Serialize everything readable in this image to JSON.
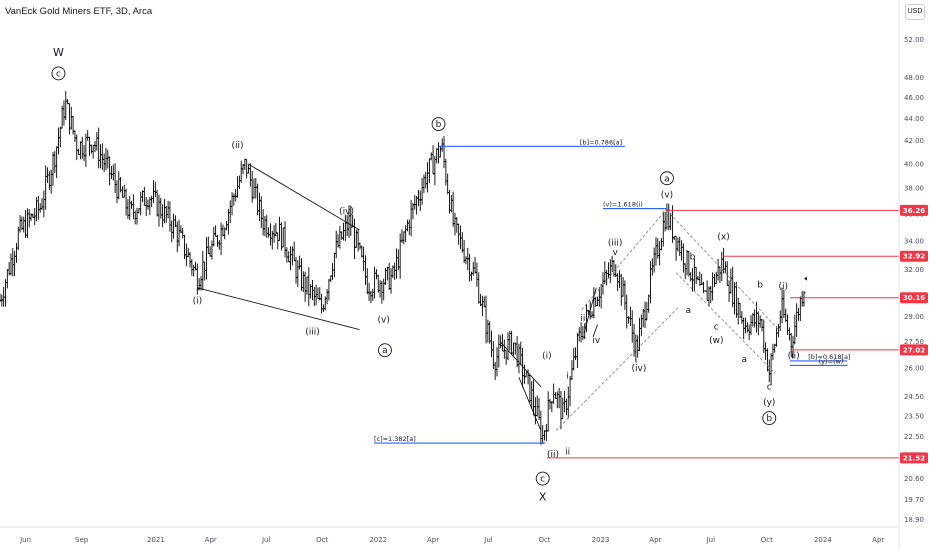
{
  "header": {
    "title": "VanEck Gold Miners ETF, 3D, Arca",
    "currency": "USD"
  },
  "colors": {
    "bars": "#000000",
    "fib_line": "#2962ff",
    "level_line": "#f23645",
    "badge": "#f23645",
    "axis_text": "#4a4e59",
    "channel": "#787b86"
  },
  "chart_data": {
    "type": "ohlc",
    "x_axis": {
      "tick_labels": [
        "Jun",
        "Sep",
        "2021",
        "Apr",
        "Jul",
        "Oct",
        "2022",
        "Apr",
        "Jul",
        "Oct",
        "2023",
        "Apr",
        "Jul",
        "Oct",
        "2024",
        "Apr"
      ],
      "tick_dates": [
        "2020-06-01",
        "2020-09-01",
        "2021-01-01",
        "2021-04-01",
        "2021-07-01",
        "2021-10-01",
        "2022-01-01",
        "2022-04-01",
        "2022-07-01",
        "2022-10-01",
        "2023-01-01",
        "2023-04-01",
        "2023-07-01",
        "2023-10-01",
        "2024-01-01",
        "2024-04-01"
      ],
      "range": [
        "2020-04-20",
        "2024-05-05"
      ]
    },
    "y_axis": {
      "scale": "log",
      "range": [
        18.6,
        56.5
      ],
      "tick_values": [
        52.0,
        48.0,
        46.0,
        44.0,
        42.0,
        40.0,
        38.0,
        36.0,
        34.0,
        32.0,
        29.0,
        27.5,
        26.0,
        24.5,
        23.5,
        22.5,
        21.5,
        20.6,
        19.7,
        18.9
      ],
      "tick_labels": [
        "52.00",
        "48.00",
        "46.00",
        "44.00",
        "42.00",
        "40.00",
        "38.00",
        "36.00",
        "34.00",
        "32.00",
        "29.00",
        "27.50",
        "26.00",
        "24.50",
        "23.50",
        "22.50",
        "21.50",
        "20.60",
        "19.70",
        "18.90"
      ]
    },
    "price_path": [
      {
        "date": "2020-04-20",
        "price": 30.0
      },
      {
        "date": "2020-05-20",
        "price": 34.5
      },
      {
        "date": "2020-06-25",
        "price": 36.5
      },
      {
        "date": "2020-07-20",
        "price": 41.0
      },
      {
        "date": "2020-08-05",
        "price": 45.5
      },
      {
        "date": "2020-08-25",
        "price": 41.5
      },
      {
        "date": "2020-09-20",
        "price": 42.0
      },
      {
        "date": "2020-10-20",
        "price": 39.0
      },
      {
        "date": "2020-11-20",
        "price": 36.0
      },
      {
        "date": "2020-12-20",
        "price": 37.5
      },
      {
        "date": "2021-02-01",
        "price": 35.0
      },
      {
        "date": "2021-03-10",
        "price": 31.5
      },
      {
        "date": "2021-04-20",
        "price": 35.0
      },
      {
        "date": "2021-05-28",
        "price": 40.0
      },
      {
        "date": "2021-06-25",
        "price": 35.5
      },
      {
        "date": "2021-07-25",
        "price": 34.5
      },
      {
        "date": "2021-08-25",
        "price": 31.5
      },
      {
        "date": "2021-09-30",
        "price": 29.5
      },
      {
        "date": "2021-10-20",
        "price": 33.0
      },
      {
        "date": "2021-11-15",
        "price": 35.5
      },
      {
        "date": "2021-12-15",
        "price": 31.0
      },
      {
        "date": "2022-01-25",
        "price": 31.5
      },
      {
        "date": "2022-02-20",
        "price": 35.5
      },
      {
        "date": "2022-03-20",
        "price": 39.0
      },
      {
        "date": "2022-04-15",
        "price": 41.5
      },
      {
        "date": "2022-05-05",
        "price": 35.0
      },
      {
        "date": "2022-06-10",
        "price": 31.5
      },
      {
        "date": "2022-07-10",
        "price": 26.5
      },
      {
        "date": "2022-08-10",
        "price": 27.5
      },
      {
        "date": "2022-09-10",
        "price": 24.5
      },
      {
        "date": "2022-09-28",
        "price": 22.5
      },
      {
        "date": "2022-10-15",
        "price": 25.0
      },
      {
        "date": "2022-11-01",
        "price": 23.5
      },
      {
        "date": "2022-11-25",
        "price": 27.5
      },
      {
        "date": "2022-12-20",
        "price": 30.0
      },
      {
        "date": "2023-01-25",
        "price": 32.5
      },
      {
        "date": "2023-03-01",
        "price": 27.0
      },
      {
        "date": "2023-03-25",
        "price": 31.5
      },
      {
        "date": "2023-04-18",
        "price": 36.0
      },
      {
        "date": "2023-05-12",
        "price": 33.5
      },
      {
        "date": "2023-06-20",
        "price": 30.0
      },
      {
        "date": "2023-07-20",
        "price": 32.5
      },
      {
        "date": "2023-08-25",
        "price": 28.5
      },
      {
        "date": "2023-09-20",
        "price": 28.8
      },
      {
        "date": "2023-10-05",
        "price": 25.8
      },
      {
        "date": "2023-10-25",
        "price": 29.5
      },
      {
        "date": "2023-11-10",
        "price": 27.5
      },
      {
        "date": "2023-12-01",
        "price": 31.0
      }
    ],
    "price_levels": [
      {
        "value": 36.26,
        "label": "36.26",
        "from": "2023-04-18"
      },
      {
        "value": 32.92,
        "label": "32.92",
        "from": "2023-07-22"
      },
      {
        "value": 30.16,
        "label": "30.16",
        "from": "2023-11-08"
      },
      {
        "value": 27.02,
        "label": "27.02",
        "from": "2023-11-12"
      },
      {
        "value": 21.52,
        "label": "21.52",
        "from": "2022-10-05"
      }
    ],
    "fib_lines": [
      {
        "value": 41.5,
        "from": "2022-04-10",
        "to": "2023-02-10",
        "label": "[b]=0.786[a]",
        "label_date": "2022-11-28"
      },
      {
        "value": 22.2,
        "from": "2021-12-25",
        "to": "2022-10-02",
        "label": "[c]=1.382[a]",
        "label_date": "2021-12-25"
      },
      {
        "value": 36.4,
        "from": "2023-01-05",
        "to": "2023-04-20",
        "label": "(v)=1.618(i)",
        "label_date": "2023-01-05"
      },
      {
        "value": 26.4,
        "from": "2023-11-08",
        "to": "2024-02-10",
        "label": "[b]=0.618[a]",
        "label_date": "2023-12-08"
      },
      {
        "value": 26.15,
        "from": "2023-11-08",
        "to": "2024-02-10",
        "label": "(y)=(w)",
        "label_date": "2023-12-25"
      }
    ],
    "trendlines": [
      {
        "from": {
          "date": "2021-06-01",
          "price": 40.0
        },
        "to": {
          "date": "2021-12-01",
          "price": 34.8
        }
      },
      {
        "from": {
          "date": "2021-03-10",
          "price": 30.8
        },
        "to": {
          "date": "2021-12-01",
          "price": 28.2
        }
      },
      {
        "from": {
          "date": "2022-07-20",
          "price": 27.5
        },
        "to": {
          "date": "2022-09-25",
          "price": 25.0
        }
      },
      {
        "from": {
          "date": "2022-08-20",
          "price": 25.5
        },
        "to": {
          "date": "2022-09-25",
          "price": 22.8
        }
      },
      {
        "from": {
          "date": "2022-12-05",
          "price": 28.0
        },
        "to": {
          "date": "2022-12-25",
          "price": 30.8
        }
      },
      {
        "from": {
          "date": "2022-12-20",
          "price": 27.8
        },
        "to": {
          "date": "2022-12-27",
          "price": 28.5
        }
      }
    ],
    "channels": [
      {
        "from": {
          "date": "2022-12-01",
          "price": 29.4
        },
        "to": {
          "date": "2023-04-20",
          "price": 36.4
        }
      },
      {
        "from": {
          "date": "2022-10-20",
          "price": 22.8
        },
        "to": {
          "date": "2023-05-10",
          "price": 29.6
        }
      },
      {
        "from": {
          "date": "2023-04-25",
          "price": 36.0
        },
        "to": {
          "date": "2023-10-20",
          "price": 28.2
        }
      },
      {
        "from": {
          "date": "2023-05-05",
          "price": 31.8
        },
        "to": {
          "date": "2023-10-15",
          "price": 25.7
        }
      }
    ],
    "wave_labels": [
      {
        "text": "W",
        "date": "2020-07-25",
        "price": 50.5,
        "style": "big"
      },
      {
        "text": "c",
        "date": "2020-07-25",
        "price": 48.4,
        "style": "circle"
      },
      {
        "text": "(ii)",
        "date": "2021-05-15",
        "price": 41.6,
        "style": "plain"
      },
      {
        "text": "(iv)",
        "date": "2021-11-10",
        "price": 36.2,
        "style": "plain"
      },
      {
        "text": "(i)",
        "date": "2021-03-10",
        "price": 30.0,
        "style": "plain"
      },
      {
        "text": "(iii)",
        "date": "2021-09-15",
        "price": 28.1,
        "style": "plain"
      },
      {
        "text": "(v)",
        "date": "2022-01-10",
        "price": 28.8,
        "style": "plain"
      },
      {
        "text": "a",
        "date": "2022-01-12",
        "price": 27.0,
        "style": "circle"
      },
      {
        "text": "b",
        "date": "2022-04-10",
        "price": 43.5,
        "style": "circle"
      },
      {
        "text": "(i)",
        "date": "2022-10-05",
        "price": 26.7,
        "style": "plain"
      },
      {
        "text": "(ii)",
        "date": "2022-10-15",
        "price": 21.7,
        "style": "plain"
      },
      {
        "text": "ii",
        "date": "2022-11-08",
        "price": 21.8,
        "style": "plain"
      },
      {
        "text": "i",
        "date": "2022-11-08",
        "price": 25.6,
        "style": "plain"
      },
      {
        "text": "iii",
        "date": "2022-12-05",
        "price": 28.9,
        "style": "plain"
      },
      {
        "text": "iv",
        "date": "2022-12-25",
        "price": 27.6,
        "style": "plain"
      },
      {
        "text": "c",
        "date": "2022-09-28",
        "price": 20.6,
        "style": "circle"
      },
      {
        "text": "X",
        "date": "2022-09-28",
        "price": 19.8,
        "style": "big"
      },
      {
        "text": "(iii)",
        "date": "2023-01-25",
        "price": 33.9,
        "style": "plain"
      },
      {
        "text": "v",
        "date": "2023-01-25",
        "price": 33.2,
        "style": "plain"
      },
      {
        "text": "(iv)",
        "date": "2023-03-05",
        "price": 26.0,
        "style": "plain"
      },
      {
        "text": "a",
        "date": "2023-04-20",
        "price": 38.8,
        "style": "circle"
      },
      {
        "text": "(v)",
        "date": "2023-04-20",
        "price": 37.5,
        "style": "plain"
      },
      {
        "text": "b",
        "date": "2023-06-01",
        "price": 32.9,
        "style": "plain"
      },
      {
        "text": "a",
        "date": "2023-05-25",
        "price": 29.4,
        "style": "plain"
      },
      {
        "text": "(x)",
        "date": "2023-07-22",
        "price": 34.3,
        "style": "plain"
      },
      {
        "text": "c",
        "date": "2023-07-10",
        "price": 28.4,
        "style": "plain"
      },
      {
        "text": "(w)",
        "date": "2023-07-10",
        "price": 27.6,
        "style": "plain"
      },
      {
        "text": "a",
        "date": "2023-08-25",
        "price": 26.5,
        "style": "plain"
      },
      {
        "text": "b",
        "date": "2023-09-20",
        "price": 31.0,
        "style": "plain"
      },
      {
        "text": "c",
        "date": "2023-10-05",
        "price": 25.0,
        "style": "plain"
      },
      {
        "text": "(y)",
        "date": "2023-10-05",
        "price": 24.2,
        "style": "plain"
      },
      {
        "text": "b",
        "date": "2023-10-05",
        "price": 23.4,
        "style": "circle"
      },
      {
        "text": "(i)",
        "date": "2023-10-28",
        "price": 30.9,
        "style": "plain"
      },
      {
        "text": "(ii)",
        "date": "2023-11-14",
        "price": 26.7,
        "style": "plain"
      }
    ],
    "current_marker": {
      "date": "2023-12-01",
      "price": 31.2
    }
  }
}
